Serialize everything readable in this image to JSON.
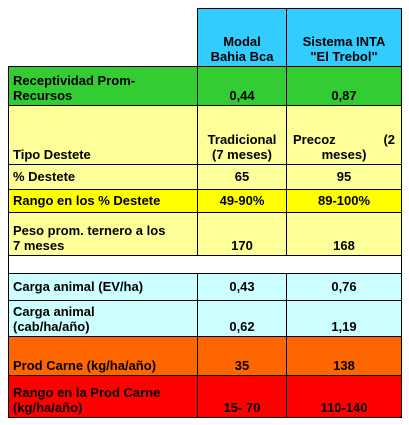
{
  "header": {
    "col1": "Modal\nBahia Bca",
    "col2": "Sistema INTA\n\"El Trebol\""
  },
  "rows": [
    {
      "label": "Receptividad Prom-\nRecursos",
      "v1": "0,44",
      "v2": "0,87",
      "color": "#33cc33"
    },
    {
      "label": "Tipo Destete",
      "v1": "Tradicional\n(7 meses)",
      "v2_a": "Precoz",
      "v2_b": "(2",
      "v2_c": "meses)",
      "color": "#ffff99"
    },
    {
      "label": "% Destete",
      "v1": "65",
      "v2": "95",
      "color": "#ffff99"
    },
    {
      "label": "Rango en los % Destete",
      "v1": "49-90%",
      "v2": "89-100%",
      "color": "#ffff00"
    },
    {
      "label": "Peso prom. ternero a los\n7 meses",
      "v1": "170",
      "v2": "168",
      "color": "#ffff99"
    },
    {
      "label": "Carga animal  (EV/ha)",
      "v1": "0,43",
      "v2": "0,76",
      "color": "#ccffff"
    },
    {
      "label": "Carga animal\n(cab/ha/año)",
      "v1": "0,62",
      "v2": "1,19",
      "color": "#ccffff"
    },
    {
      "label": "Prod Carne (kg/ha/año)",
      "v1": "35",
      "v2": "138",
      "color": "#ff6600"
    },
    {
      "label": "Rango en la Prod Carne\n(kg/ha/año)",
      "v1": "15- 70",
      "v2": "110-140",
      "color": "#ff0000"
    }
  ],
  "colors": {
    "header": "#33ccff",
    "empty": "#ffffff"
  }
}
